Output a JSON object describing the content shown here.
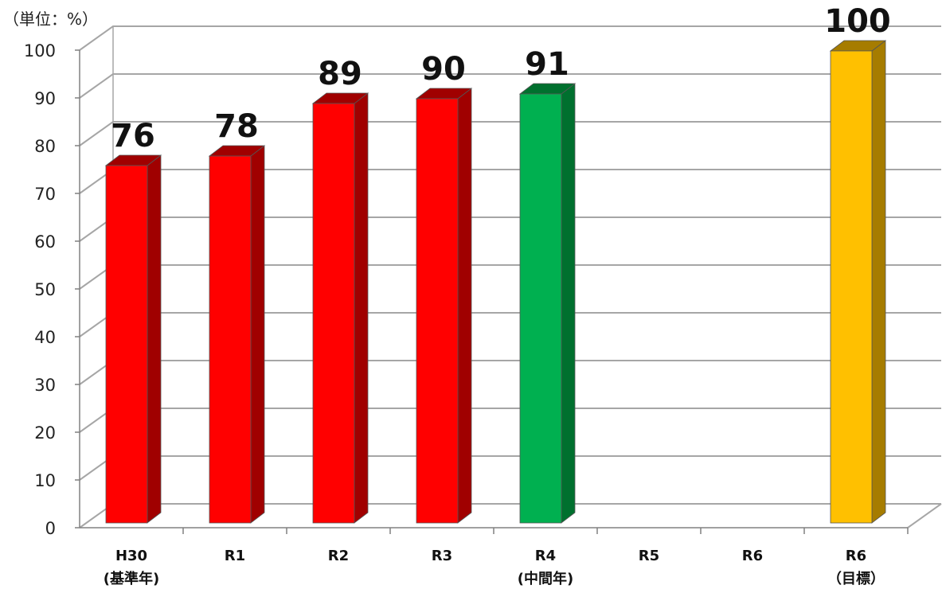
{
  "chart_data": {
    "type": "bar",
    "unit_label": "（単位：%）",
    "categories": [
      [
        "H30",
        "(基準年)"
      ],
      [
        "R1",
        ""
      ],
      [
        "R2",
        ""
      ],
      [
        "R3",
        ""
      ],
      [
        "R4",
        "(中間年)"
      ],
      [
        "R5",
        ""
      ],
      [
        "R6",
        ""
      ],
      [
        "R6",
        "（目標）"
      ]
    ],
    "values": [
      76,
      78,
      89,
      90,
      91,
      null,
      null,
      100
    ],
    "data_labels": [
      "76",
      "78",
      "89",
      "90",
      "91",
      "",
      "",
      "100"
    ],
    "bar_colors": [
      "#ff0000",
      "#ff0000",
      "#ff0000",
      "#ff0000",
      "#00b050",
      null,
      null,
      "#ffc000"
    ],
    "bar_side_colors": [
      "#a00000",
      "#a00000",
      "#a00000",
      "#a00000",
      "#00702e",
      null,
      null,
      "#a67c00"
    ],
    "ylim": [
      0,
      100
    ],
    "y_ticks": [
      "0",
      "10",
      "20",
      "30",
      "40",
      "50",
      "60",
      "70",
      "80",
      "90",
      "100"
    ],
    "grid": true,
    "legend": "none",
    "style": "3d-column"
  }
}
